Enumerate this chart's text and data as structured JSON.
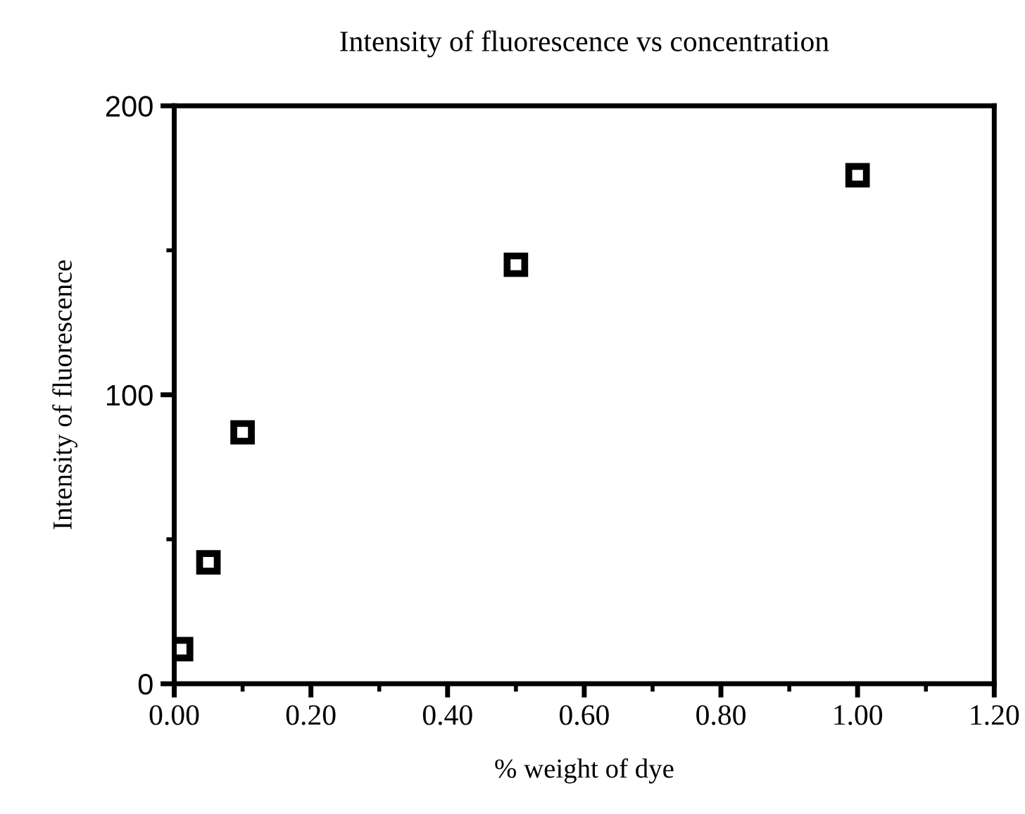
{
  "chart_data": {
    "type": "scatter",
    "title": "Intensity of fluorescence vs concentration",
    "xlabel": "% weight of dye",
    "ylabel": "Intensity of fluorescence",
    "x": [
      0.01,
      0.05,
      0.1,
      0.5,
      1.0
    ],
    "series": [
      {
        "color": "#000000",
        "values": [
          12,
          42,
          87,
          145,
          176
        ]
      }
    ],
    "marker": "square",
    "grid": false,
    "legend": false,
    "xlim": [
      0,
      1.2
    ],
    "xticks": [
      {
        "value": 0,
        "label": "0.00"
      },
      {
        "value": 0.2,
        "label": "0.20"
      },
      {
        "value": 0.4,
        "label": "0.40"
      },
      {
        "value": 0.6,
        "label": "0.60"
      },
      {
        "value": 0.8,
        "label": "0.80"
      },
      {
        "value": 1.0,
        "label": "1.00"
      },
      {
        "value": 1.2,
        "label": "1.20"
      }
    ],
    "ylim": [
      0,
      200
    ],
    "yticks": [
      0,
      100,
      200
    ]
  }
}
